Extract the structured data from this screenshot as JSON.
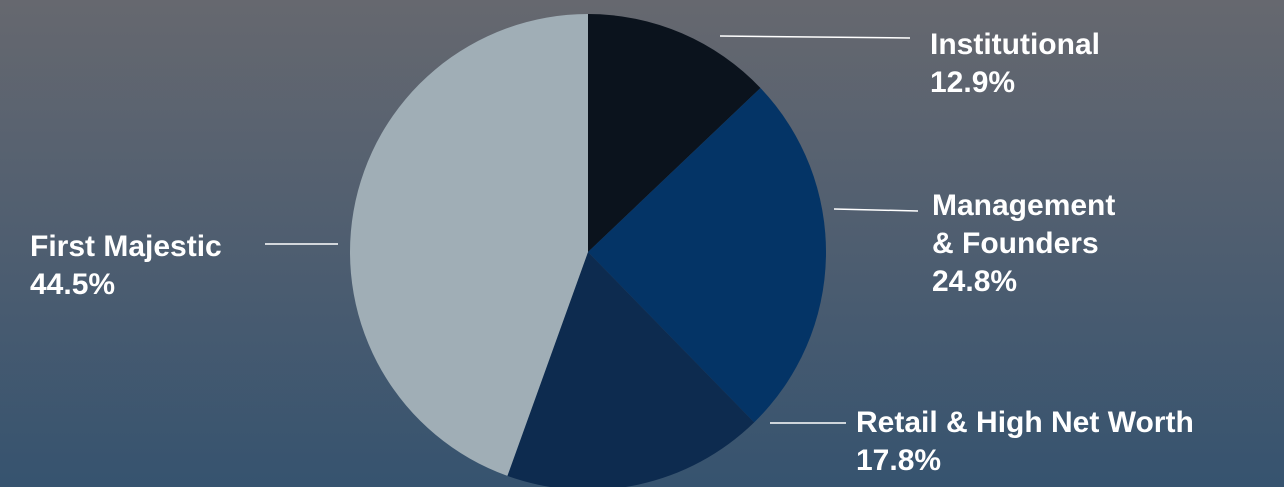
{
  "chart_data": {
    "type": "pie",
    "title": "",
    "slices": [
      {
        "name": "Institutional",
        "value": 12.9,
        "value_label": "12.9%",
        "label_lines": [
          "Institutional"
        ],
        "color": "#0b131d"
      },
      {
        "name": "Management & Founders",
        "value": 24.8,
        "value_label": "24.8%",
        "label_lines": [
          "Management",
          "& Founders"
        ],
        "color": "#043466"
      },
      {
        "name": "Retail & High Net Worth",
        "value": 17.8,
        "value_label": "17.8%",
        "label_lines": [
          "Retail & High Net Worth"
        ],
        "color": "#0d2b4f"
      },
      {
        "name": "First Majestic",
        "value": 44.5,
        "value_label": "44.5%",
        "label_lines": [
          "First Majestic"
        ],
        "color": "#a0aeb6"
      }
    ]
  }
}
